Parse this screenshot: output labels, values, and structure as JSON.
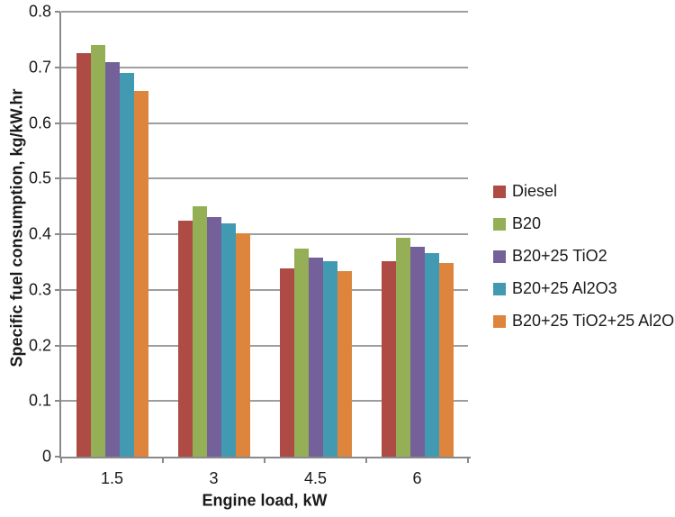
{
  "chart_data": {
    "type": "bar",
    "title": "",
    "xlabel": "Engine load, kW",
    "ylabel": "Specific fuel consumption, kg/kW.hr",
    "categories": [
      "1.5",
      "3",
      "4.5",
      "6"
    ],
    "series": [
      {
        "name": "Diesel",
        "color": "#ae4b45",
        "values": [
          0.725,
          0.424,
          0.338,
          0.352
        ]
      },
      {
        "name": "B20",
        "color": "#94af55",
        "values": [
          0.74,
          0.451,
          0.374,
          0.393
        ]
      },
      {
        "name": "B20+25 TiO2",
        "color": "#75619a",
        "values": [
          0.71,
          0.431,
          0.358,
          0.377
        ]
      },
      {
        "name": "B20+25 Al2O3",
        "color": "#4299b2",
        "values": [
          0.69,
          0.42,
          0.352,
          0.366
        ]
      },
      {
        "name": "B20+25 TiO2+25 Al2O3",
        "color": "#de853d",
        "values": [
          0.658,
          0.402,
          0.333,
          0.349
        ]
      }
    ],
    "ylim": [
      0,
      0.8
    ],
    "ytick_step": 0.1,
    "ytick_labels": [
      "0",
      "0.1",
      "0.2",
      "0.3",
      "0.4",
      "0.5",
      "0.6",
      "0.7",
      "0.8"
    ],
    "grid": true,
    "legend_position": "right",
    "colors": {
      "gridline": "#9e9e9e",
      "axis": "#8a8a8a",
      "text": "#1a1a1a"
    }
  }
}
